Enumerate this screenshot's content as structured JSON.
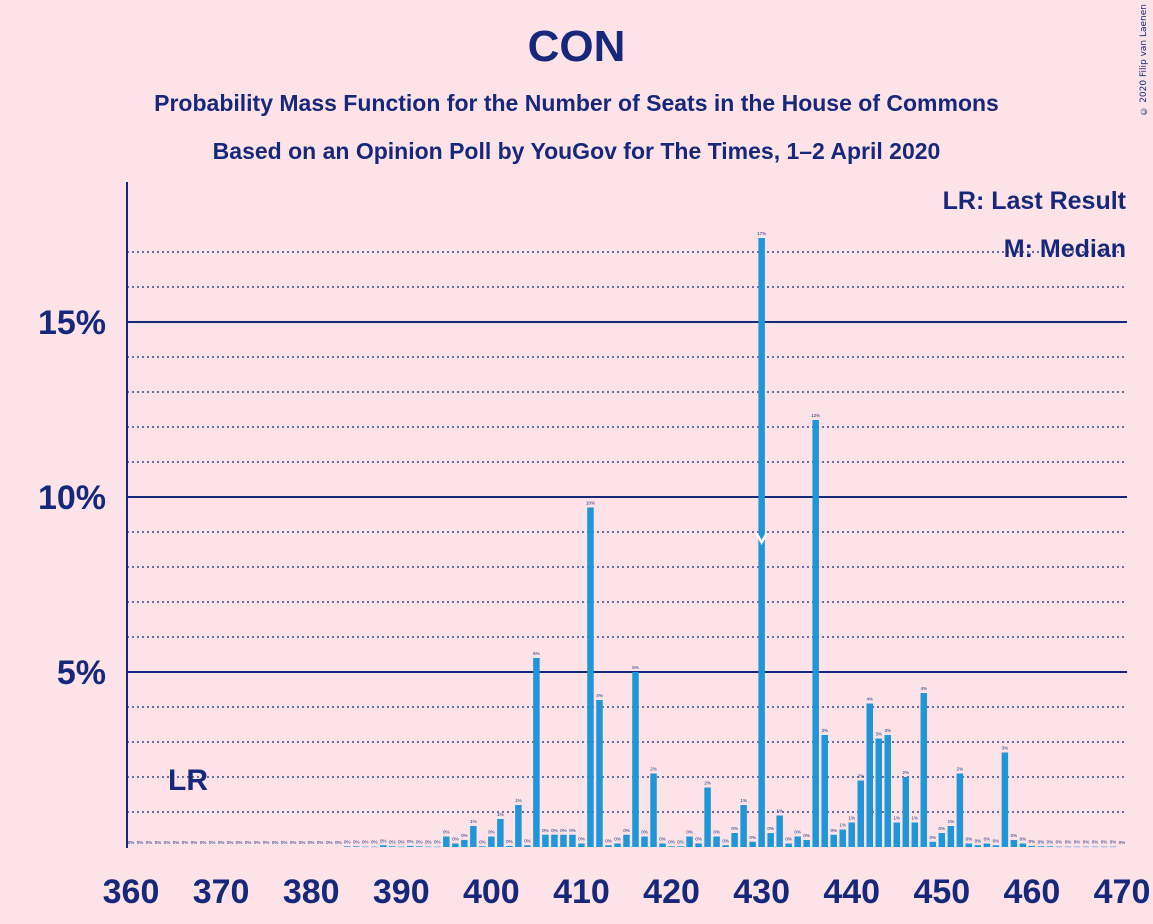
{
  "header": {
    "title": "CON",
    "subtitle1": "Probability Mass Function for the Number of Seats in the House of Commons",
    "subtitle2": "Based on an Opinion Poll by YouGov for The Times, 1–2 April 2020",
    "credit": "© 2020 Filip van Laenen"
  },
  "legend": {
    "lr": "LR: Last Result",
    "m": "M: Median"
  },
  "markers": {
    "lr_label": "LR",
    "lr_seat": 365,
    "median_seat": 430
  },
  "colors": {
    "background": "#fde3e7",
    "bar": "#1e96d8",
    "axis": "#17277a"
  },
  "chart_data": {
    "type": "bar",
    "x_tick_labels": [
      "360",
      "370",
      "380",
      "390",
      "400",
      "410",
      "420",
      "430",
      "440",
      "450",
      "460",
      "470"
    ],
    "y_tick_labels": [
      "5%",
      "10%",
      "15%"
    ],
    "xlim": [
      360,
      470
    ],
    "ylim": [
      0,
      19
    ],
    "grid": true,
    "x": [
      360,
      361,
      362,
      363,
      364,
      365,
      366,
      367,
      368,
      369,
      370,
      371,
      372,
      373,
      374,
      375,
      376,
      377,
      378,
      379,
      380,
      381,
      382,
      383,
      384,
      385,
      386,
      387,
      388,
      389,
      390,
      391,
      392,
      393,
      394,
      395,
      396,
      397,
      398,
      399,
      400,
      401,
      402,
      403,
      404,
      405,
      406,
      407,
      408,
      409,
      410,
      411,
      412,
      413,
      414,
      415,
      416,
      417,
      418,
      419,
      420,
      421,
      422,
      423,
      424,
      425,
      426,
      427,
      428,
      429,
      430,
      431,
      432,
      433,
      434,
      435,
      436,
      437,
      438,
      439,
      440,
      441,
      442,
      443,
      444,
      445,
      446,
      447,
      448,
      449,
      450,
      451,
      452,
      453,
      454,
      455,
      456,
      457,
      458,
      459,
      460,
      461,
      462,
      463,
      464,
      465,
      466,
      467,
      468,
      469,
      470
    ],
    "values": [
      0,
      0,
      0,
      0,
      0,
      0,
      0,
      0,
      0,
      0,
      0,
      0,
      0,
      0,
      0,
      0,
      0,
      0,
      0,
      0,
      0,
      0,
      0,
      0,
      0.02,
      0.02,
      0.01,
      0.01,
      0.05,
      0.02,
      0.01,
      0.03,
      0.02,
      0.01,
      0.01,
      0.3,
      0.1,
      0.2,
      0.6,
      0.02,
      0.3,
      0.8,
      0.03,
      1.2,
      0.05,
      5.4,
      0.35,
      0.35,
      0.35,
      0.35,
      0.1,
      9.7,
      4.2,
      0.05,
      0.1,
      0.35,
      5.0,
      0.3,
      2.1,
      0.1,
      0.02,
      0.02,
      0.3,
      0.1,
      1.7,
      0.3,
      0.05,
      0.4,
      1.2,
      0.15,
      17.4,
      0.4,
      0.9,
      0.1,
      0.3,
      0.2,
      12.2,
      3.2,
      0.35,
      0.5,
      0.7,
      1.9,
      4.1,
      3.1,
      3.2,
      0.7,
      2.0,
      0.7,
      4.4,
      0.15,
      0.4,
      0.6,
      2.1,
      0.1,
      0.05,
      0.1,
      0.05,
      2.7,
      0.2,
      0.1,
      0.03,
      0.02,
      0.02,
      0.01,
      0.01,
      0.01,
      0.01,
      0.01,
      0.01,
      0.01,
      0
    ]
  }
}
